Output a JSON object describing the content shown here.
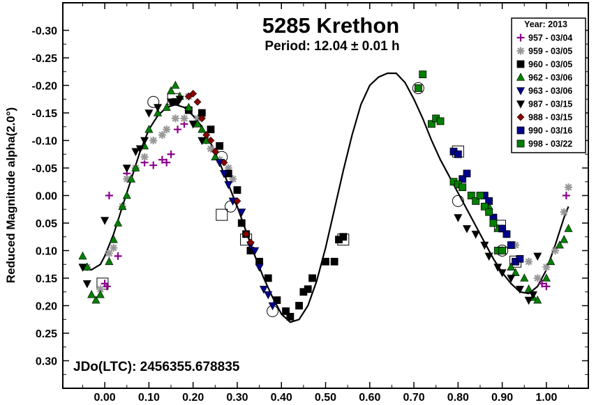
{
  "chart_data": {
    "type": "scatter",
    "title": "5285 Krethon",
    "subtitle": "Period: 12.04 ± 0.01 h",
    "ylabel": "Reduced Magnitude alpha(2.0°)",
    "xlabel": "",
    "annotation": "JDo(LTC): 2456355.678835",
    "xlim": [
      -0.095,
      1.095
    ],
    "ylim": [
      -0.35,
      0.35
    ],
    "y_inverted": true,
    "x_ticks": [
      "0.00",
      "0.10",
      "0.20",
      "0.30",
      "0.40",
      "0.50",
      "0.60",
      "0.70",
      "0.80",
      "0.90",
      "1.00"
    ],
    "y_ticks": [
      "-0.30",
      "-0.25",
      "-0.20",
      "-0.15",
      "-0.10",
      "-0.05",
      "0.00",
      "0.05",
      "0.10",
      "0.15",
      "0.20",
      "0.25",
      "0.30"
    ],
    "grid": false,
    "legend": {
      "title": "Year: 2013",
      "placement": "top-right",
      "entries": [
        "957 - 03/04",
        "959 - 03/05",
        "960 - 03/05",
        "962 - 03/06",
        "963 - 03/06",
        "987 - 03/15",
        "988 - 03/15",
        "990 - 03/16",
        "998 - 03/22"
      ]
    },
    "series": [
      {
        "name": "957 - 03/04",
        "marker": "plus",
        "color": "#8B008B",
        "points": [
          [
            0.0,
            0.16
          ],
          [
            0.005,
            0.165
          ],
          [
            0.01,
            0.0
          ],
          [
            0.03,
            0.11
          ],
          [
            0.05,
            -0.04
          ],
          [
            0.07,
            -0.05
          ],
          [
            0.09,
            -0.06
          ],
          [
            0.11,
            -0.055
          ],
          [
            0.13,
            -0.065
          ],
          [
            0.14,
            -0.06
          ],
          [
            0.15,
            -0.075
          ],
          [
            0.165,
            -0.12
          ],
          [
            0.18,
            -0.13
          ],
          [
            0.99,
            0.16
          ],
          [
            1.0,
            0.165
          ],
          [
            1.045,
            0.0
          ]
        ]
      },
      {
        "name": "959 - 03/05",
        "marker": "asterisk",
        "color": "#999999",
        "points": [
          [
            -0.04,
            0.13
          ],
          [
            -0.01,
            0.17
          ],
          [
            0.01,
            0.105
          ],
          [
            0.02,
            0.095
          ],
          [
            0.04,
            0.02
          ],
          [
            0.05,
            -0.03
          ],
          [
            0.07,
            -0.05
          ],
          [
            0.09,
            -0.07
          ],
          [
            0.11,
            -0.1
          ],
          [
            0.13,
            -0.11
          ],
          [
            0.14,
            -0.12
          ],
          [
            0.16,
            -0.14
          ],
          [
            0.18,
            -0.14
          ],
          [
            0.19,
            -0.18
          ],
          [
            0.21,
            -0.14
          ],
          [
            0.23,
            -0.1
          ],
          [
            0.24,
            -0.085
          ],
          [
            0.26,
            -0.065
          ],
          [
            0.28,
            -0.05
          ],
          [
            0.29,
            -0.03
          ],
          [
            0.9,
            0.06
          ],
          [
            0.91,
            0.07
          ],
          [
            0.93,
            0.09
          ],
          [
            0.96,
            0.12
          ],
          [
            0.98,
            0.15
          ],
          [
            1.0,
            0.13
          ],
          [
            1.02,
            0.1
          ],
          [
            1.04,
            0.03
          ],
          [
            1.05,
            -0.015
          ]
        ]
      },
      {
        "name": "960 - 03/05",
        "marker": "square",
        "color": "#000000",
        "points": [
          [
            0.16,
            -0.17
          ],
          [
            0.19,
            -0.155
          ],
          [
            0.22,
            -0.15
          ],
          [
            0.24,
            -0.12
          ],
          [
            0.26,
            -0.09
          ],
          [
            0.28,
            -0.04
          ],
          [
            0.3,
            -0.01
          ],
          [
            0.31,
            0.05
          ],
          [
            0.32,
            0.07
          ],
          [
            0.33,
            0.1
          ],
          [
            0.35,
            0.12
          ],
          [
            0.37,
            0.15
          ],
          [
            0.39,
            0.19
          ],
          [
            0.41,
            0.21
          ],
          [
            0.42,
            0.22
          ],
          [
            0.44,
            0.2
          ],
          [
            0.45,
            0.175
          ],
          [
            0.46,
            0.17
          ],
          [
            0.47,
            0.15
          ],
          [
            0.5,
            0.12
          ],
          [
            0.52,
            0.12
          ],
          [
            0.53,
            0.08
          ],
          [
            0.54,
            0.075
          ]
        ]
      },
      {
        "name": "962 - 03/06",
        "marker": "triangle",
        "color": "#008000",
        "points": [
          [
            -0.05,
            0.11
          ],
          [
            -0.04,
            0.13
          ],
          [
            -0.03,
            0.18
          ],
          [
            -0.02,
            0.19
          ],
          [
            -0.01,
            0.18
          ],
          [
            0.01,
            0.12
          ],
          [
            0.02,
            0.08
          ],
          [
            0.03,
            0.05
          ],
          [
            0.04,
            0.02
          ],
          [
            0.05,
            0.0
          ],
          [
            0.06,
            -0.03
          ],
          [
            0.07,
            -0.05
          ],
          [
            0.09,
            -0.09
          ],
          [
            0.1,
            -0.12
          ],
          [
            0.12,
            -0.15
          ],
          [
            0.14,
            -0.16
          ],
          [
            0.15,
            -0.19
          ],
          [
            0.16,
            -0.2
          ],
          [
            0.17,
            -0.18
          ],
          [
            0.19,
            -0.16
          ],
          [
            0.21,
            -0.13
          ],
          [
            0.22,
            -0.12
          ],
          [
            0.23,
            -0.1
          ],
          [
            0.25,
            -0.07
          ],
          [
            0.87,
            0.02
          ],
          [
            0.88,
            0.05
          ],
          [
            0.89,
            0.06
          ],
          [
            0.9,
            0.1
          ],
          [
            0.92,
            0.13
          ],
          [
            0.93,
            0.14
          ],
          [
            0.95,
            0.15
          ],
          [
            0.96,
            0.17
          ],
          [
            0.97,
            0.185
          ],
          [
            0.98,
            0.19
          ],
          [
            1.0,
            0.15
          ],
          [
            1.01,
            0.12
          ],
          [
            1.03,
            0.09
          ],
          [
            1.04,
            0.08
          ],
          [
            1.05,
            0.06
          ]
        ]
      },
      {
        "name": "963 - 03/06",
        "marker": "triangle-down",
        "color": "#00008B",
        "points": [
          [
            0.26,
            -0.06
          ],
          [
            0.27,
            -0.04
          ],
          [
            0.28,
            -0.02
          ],
          [
            0.29,
            0.01
          ],
          [
            0.31,
            0.03
          ],
          [
            0.33,
            0.09
          ],
          [
            0.34,
            0.1
          ],
          [
            0.35,
            0.13
          ],
          [
            0.36,
            0.17
          ],
          [
            0.37,
            0.18
          ],
          [
            0.38,
            0.2
          ]
        ]
      },
      {
        "name": "987 - 03/15",
        "marker": "triangle-down",
        "color": "#000000",
        "points": [
          [
            -0.05,
            0.13
          ],
          [
            -0.04,
            0.16
          ],
          [
            0.0,
            0.045
          ],
          [
            0.05,
            -0.05
          ],
          [
            0.07,
            -0.08
          ],
          [
            0.08,
            -0.085
          ],
          [
            0.09,
            -0.1
          ],
          [
            0.1,
            -0.15
          ],
          [
            0.12,
            -0.16
          ],
          [
            0.15,
            -0.17
          ],
          [
            0.17,
            -0.175
          ],
          [
            0.2,
            -0.13
          ],
          [
            0.22,
            -0.1
          ],
          [
            0.8,
            0.04
          ],
          [
            0.82,
            0.06
          ],
          [
            0.84,
            0.07
          ],
          [
            0.86,
            0.09
          ],
          [
            0.87,
            0.11
          ],
          [
            0.89,
            0.13
          ],
          [
            0.9,
            0.14
          ],
          [
            0.92,
            0.15
          ],
          [
            0.94,
            0.17
          ],
          [
            0.96,
            0.19
          ],
          [
            0.97,
            0.18
          ],
          [
            0.98,
            0.11
          ]
        ]
      },
      {
        "name": "988 - 03/15",
        "marker": "diamond",
        "color": "#8B0000",
        "points": [
          [
            0.19,
            -0.18
          ],
          [
            0.2,
            -0.185
          ],
          [
            0.21,
            -0.17
          ],
          [
            0.22,
            -0.14
          ],
          [
            0.23,
            -0.11
          ],
          [
            0.24,
            -0.1
          ],
          [
            0.25,
            -0.08
          ],
          [
            0.27,
            -0.06
          ],
          [
            0.3,
            0.01
          ],
          [
            0.32,
            0.07
          ],
          [
            0.33,
            0.085
          ]
        ]
      },
      {
        "name": "990 - 03/16",
        "marker": "square",
        "color": "#00008B",
        "points": [
          [
            0.79,
            -0.08
          ],
          [
            0.8,
            -0.075
          ],
          [
            0.81,
            -0.03
          ],
          [
            0.82,
            -0.04
          ],
          [
            0.86,
            0.0
          ],
          [
            0.87,
            0.01
          ],
          [
            0.88,
            0.04
          ],
          [
            0.9,
            0.06
          ],
          [
            0.91,
            0.07
          ],
          [
            0.92,
            0.09
          ],
          [
            0.93,
            0.12
          ],
          [
            0.94,
            0.115
          ]
        ]
      },
      {
        "name": "998 - 03/22",
        "marker": "square",
        "color": "#008000",
        "points": [
          [
            0.71,
            -0.195
          ],
          [
            0.72,
            -0.22
          ],
          [
            0.74,
            -0.13
          ],
          [
            0.75,
            -0.14
          ],
          [
            0.76,
            -0.135
          ],
          [
            0.79,
            -0.025
          ],
          [
            0.8,
            -0.02
          ],
          [
            0.81,
            -0.015
          ],
          [
            0.83,
            0.0
          ],
          [
            0.84,
            0.01
          ],
          [
            0.85,
            0.0
          ],
          [
            0.86,
            0.02
          ],
          [
            0.87,
            0.03
          ],
          [
            0.88,
            0.05
          ],
          [
            0.89,
            0.1
          ],
          [
            0.9,
            0.1
          ]
        ]
      }
    ],
    "fit_curve": {
      "color": "#000000",
      "points": [
        [
          -0.05,
          0.13
        ],
        [
          -0.03,
          0.135
        ],
        [
          -0.01,
          0.125
        ],
        [
          0.0,
          0.11
        ],
        [
          0.02,
          0.07
        ],
        [
          0.04,
          0.02
        ],
        [
          0.06,
          -0.03
        ],
        [
          0.08,
          -0.08
        ],
        [
          0.1,
          -0.12
        ],
        [
          0.12,
          -0.145
        ],
        [
          0.14,
          -0.16
        ],
        [
          0.16,
          -0.165
        ],
        [
          0.18,
          -0.16
        ],
        [
          0.2,
          -0.145
        ],
        [
          0.22,
          -0.125
        ],
        [
          0.24,
          -0.095
        ],
        [
          0.26,
          -0.06
        ],
        [
          0.28,
          -0.02
        ],
        [
          0.3,
          0.02
        ],
        [
          0.32,
          0.065
        ],
        [
          0.34,
          0.11
        ],
        [
          0.36,
          0.15
        ],
        [
          0.38,
          0.185
        ],
        [
          0.4,
          0.215
        ],
        [
          0.42,
          0.23
        ],
        [
          0.44,
          0.225
        ],
        [
          0.46,
          0.2
        ],
        [
          0.48,
          0.155
        ],
        [
          0.5,
          0.095
        ],
        [
          0.52,
          0.025
        ],
        [
          0.54,
          -0.045
        ],
        [
          0.56,
          -0.11
        ],
        [
          0.58,
          -0.165
        ],
        [
          0.6,
          -0.2
        ],
        [
          0.62,
          -0.215
        ],
        [
          0.64,
          -0.222
        ],
        [
          0.66,
          -0.222
        ],
        [
          0.68,
          -0.205
        ],
        [
          0.7,
          -0.175
        ],
        [
          0.72,
          -0.14
        ],
        [
          0.74,
          -0.1
        ],
        [
          0.76,
          -0.065
        ],
        [
          0.78,
          -0.035
        ],
        [
          0.8,
          -0.005
        ],
        [
          0.82,
          0.025
        ],
        [
          0.84,
          0.055
        ],
        [
          0.86,
          0.085
        ],
        [
          0.88,
          0.115
        ],
        [
          0.9,
          0.14
        ],
        [
          0.92,
          0.16
        ],
        [
          0.94,
          0.175
        ],
        [
          0.96,
          0.178
        ],
        [
          0.98,
          0.165
        ],
        [
          1.0,
          0.135
        ],
        [
          1.02,
          0.09
        ],
        [
          1.04,
          0.04
        ],
        [
          1.05,
          0.02
        ]
      ]
    },
    "highlighted_points": [
      [
        -0.005,
        0.16
      ],
      [
        0.11,
        -0.17
      ],
      [
        0.155,
        -0.175
      ],
      [
        0.265,
        -0.07
      ],
      [
        0.265,
        0.035
      ],
      [
        0.285,
        0.02
      ],
      [
        0.32,
        0.08
      ],
      [
        0.38,
        0.21
      ],
      [
        0.54,
        0.08
      ],
      [
        0.71,
        -0.195
      ],
      [
        0.8,
        -0.08
      ],
      [
        0.8,
        0.01
      ],
      [
        0.895,
        0.055
      ],
      [
        0.9,
        0.1
      ],
      [
        0.93,
        0.12
      ]
    ]
  }
}
